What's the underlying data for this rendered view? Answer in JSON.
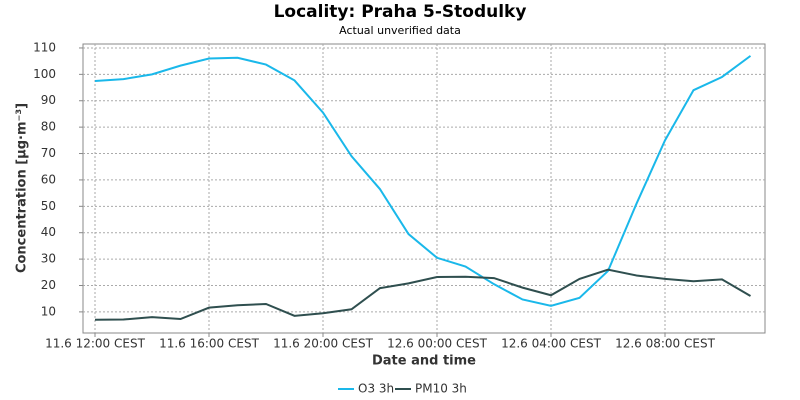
{
  "chart_data": {
    "type": "line",
    "title": "Locality: Praha 5-Stodulky",
    "subtitle": "Actual unverified data",
    "x_label": "Date and time",
    "y_label": "Concentration [µg·m⁻³]",
    "categories": [
      "11.6 12:00 CEST",
      null,
      null,
      null,
      "11.6 16:00 CEST",
      null,
      null,
      null,
      "11.6 20:00 CEST",
      null,
      null,
      null,
      "12.6 00:00 CEST",
      null,
      null,
      null,
      "12.6 04:00 CEST",
      null,
      null,
      null,
      "12.6 08:00 CEST",
      null,
      null,
      null
    ],
    "series": [
      {
        "name": "O3 3h",
        "color": "#1ab8ea",
        "values": [
          97.5,
          98.2,
          100,
          103.3,
          106,
          106.3,
          103.7,
          97.7,
          85.5,
          69,
          56.5,
          39.5,
          30.5,
          27.2,
          20.5,
          14.7,
          12.3,
          15.3,
          25.5,
          51,
          75,
          94,
          99,
          107
        ]
      },
      {
        "name": "PM10 3h",
        "color": "#2f4f4f",
        "values": [
          7,
          7.1,
          8,
          7.3,
          11.6,
          12.5,
          13,
          8.5,
          9.5,
          11,
          19,
          20.8,
          23.2,
          23.3,
          22.8,
          19.2,
          16.3,
          22.5,
          26,
          23.8,
          22.5,
          21.6,
          22.3,
          16
        ]
      }
    ],
    "ylim": [
      2,
      111.5
    ],
    "yticks": [
      10,
      20,
      30,
      40,
      50,
      60,
      70,
      80,
      90,
      100,
      110
    ],
    "grid": true,
    "legend": "bottom"
  }
}
